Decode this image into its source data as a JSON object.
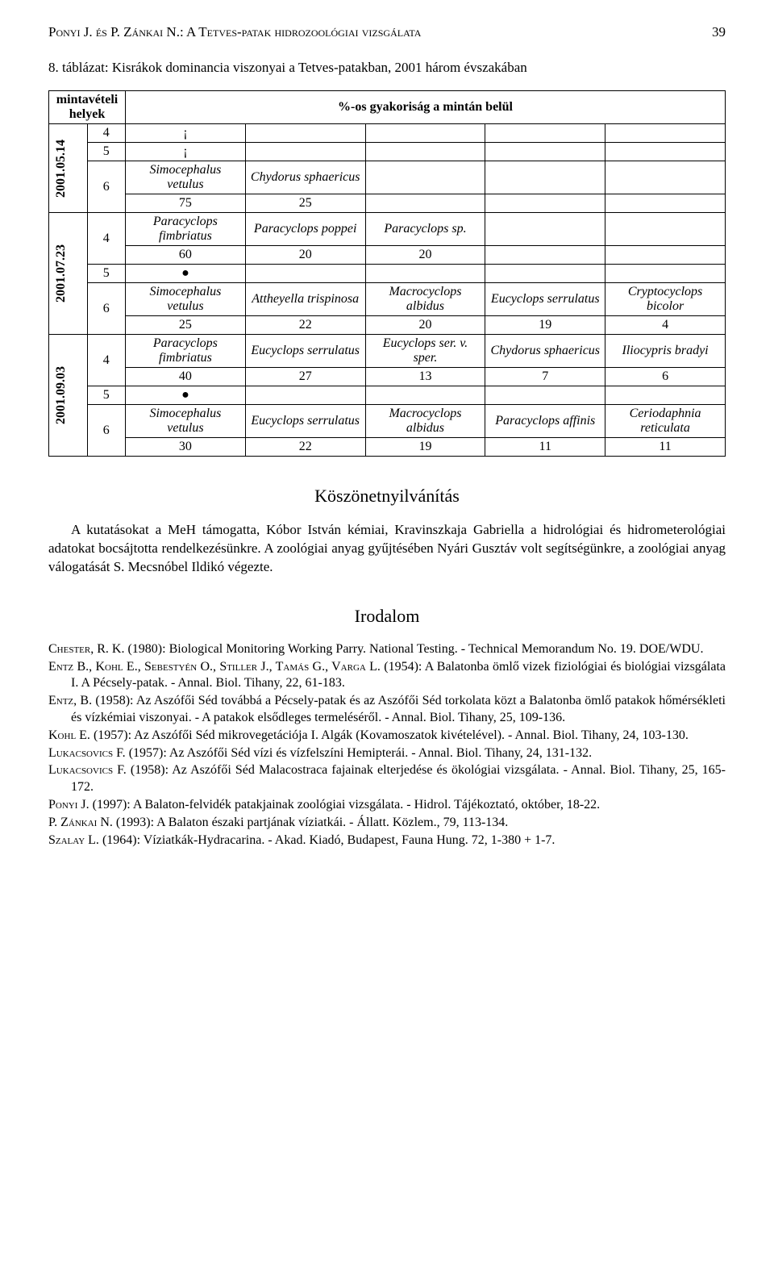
{
  "header": {
    "title_smallcaps": "Ponyi J. és P. Zánkai N.: A Tetves-patak hidrozoológiai vizsgálata",
    "page_number": "39"
  },
  "table_caption": "8. táblázat: Kisrákok dominancia viszonyai a Tetves-patakban, 2001 három évszakában",
  "table": {
    "header": {
      "left": "mintavételi helyek",
      "right": "%-os gyakoriság a mintán belül"
    },
    "date_groups": [
      "2001.05.14",
      "2001.07.23",
      "2001.09.03"
    ],
    "group1": {
      "r4": {
        "site": "4",
        "c1": "¡"
      },
      "r5": {
        "site": "5",
        "c1": "¡"
      },
      "r6a": {
        "site": "6",
        "c1": "Simocephalus vetulus",
        "c2": "Chydorus sphaericus"
      },
      "r6b": {
        "c1": "75",
        "c2": "25"
      }
    },
    "group2": {
      "r4a": {
        "site": "4",
        "c1": "Paracyclops fimbriatus",
        "c2": "Paracyclops poppei",
        "c3": "Paracyclops sp."
      },
      "r4b": {
        "c1": "60",
        "c2": "20",
        "c3": "20"
      },
      "r5": {
        "site": "5",
        "c1": "●"
      },
      "r6a": {
        "site": "6",
        "c1": "Simocephalus vetulus",
        "c2": "Attheyella trispinosa",
        "c3": "Macrocyclops albidus",
        "c4": "Eucyclops serrulatus",
        "c5": "Cryptocyclops bicolor"
      },
      "r6b": {
        "c1": "25",
        "c2": "22",
        "c3": "20",
        "c4": "19",
        "c5": "4"
      }
    },
    "group3": {
      "r4a": {
        "site": "4",
        "c1": "Paracyclops fimbriatus",
        "c2": "Eucyclops serrulatus",
        "c3": "Eucyclops ser. v. sper.",
        "c4": "Chydorus sphaericus",
        "c5": "Iliocypris bradyi"
      },
      "r4b": {
        "c1": "40",
        "c2": "27",
        "c3": "13",
        "c4": "7",
        "c5": "6"
      },
      "r5": {
        "site": "5",
        "c1": "●"
      },
      "r6a": {
        "site": "6",
        "c1": "Simocephalus vetulus",
        "c2": "Eucyclops serrulatus",
        "c3": "Macrocyclops albidus",
        "c4": "Paracyclops affinis",
        "c5": "Ceriodaphnia reticulata"
      },
      "r6b": {
        "c1": "30",
        "c2": "22",
        "c3": "19",
        "c4": "11",
        "c5": "11"
      }
    }
  },
  "sections": {
    "ack_heading": "Köszönetnyilvánítás",
    "ack_body": "A kutatásokat a MeH támogatta, Kóbor István kémiai, Kravinszkaja Gabriella a hidrológiai és hidrometerológiai adatokat bocsájtotta rendelkezésünkre. A zoológiai anyag gyűjtésében Nyári Gusztáv volt segítségünkre, a zoológiai anyag válogatását S. Mecsnóbel Ildikó végezte.",
    "refs_heading": "Irodalom"
  },
  "references": [
    {
      "author_sc": "Chester, R. K.",
      "rest": " (1980): Biological Monitoring Working Parry. National Testing. - Technical Memorandum No. 19. DOE/WDU."
    },
    {
      "author_sc": "Entz B., Kohl E., Sebestyén O., Stiller J., Tamás G., Varga L.",
      "rest": " (1954): A Balatonba ömlő vizek fiziológiai és biológiai vizsgálata I. A Pécsely-patak. - Annal. Biol. Tihany, 22, 61-183."
    },
    {
      "author_sc": "Entz, B.",
      "rest": " (1958): Az Aszófői Séd továbbá a Pécsely-patak és az Aszófői Séd torkolata közt a Balatonba ömlő patakok hőmérsékleti és vízkémiai viszonyai. - A patakok elsődleges termeléséről. - Annal. Biol. Tihany, 25, 109-136."
    },
    {
      "author_sc": "Kohl E.",
      "rest": " (1957): Az Aszófői Séd mikrovegetációja I. Algák (Kovamoszatok kivételével). - Annal. Biol. Tihany, 24, 103-130."
    },
    {
      "author_sc": "Lukacsovics F.",
      "rest": " (1957): Az Aszófői Séd vízi és vízfelszíni Hemipterái. - Annal. Biol. Tihany, 24, 131-132."
    },
    {
      "author_sc": "Lukacsovics F.",
      "rest": " (1958): Az Aszófői Séd Malacostraca fajainak elterjedése és ökológiai vizsgálata. - Annal. Biol. Tihany, 25, 165-172."
    },
    {
      "author_sc": "Ponyi J.",
      "rest": " (1997): A Balaton-felvidék patakjainak zoológiai vizsgálata. - Hidrol. Tájékoztató, október, 18-22."
    },
    {
      "author_sc": "P. Zánkai N.",
      "rest": " (1993): A Balaton északi partjának víziatkái. - Állatt. Közlem., 79, 113-134."
    },
    {
      "author_sc": "Szalay L.",
      "rest": " (1964): Víziatkák-Hydracarina. - Akad. Kiadó, Budapest, Fauna Hung. 72, 1-380 + 1-7."
    }
  ]
}
